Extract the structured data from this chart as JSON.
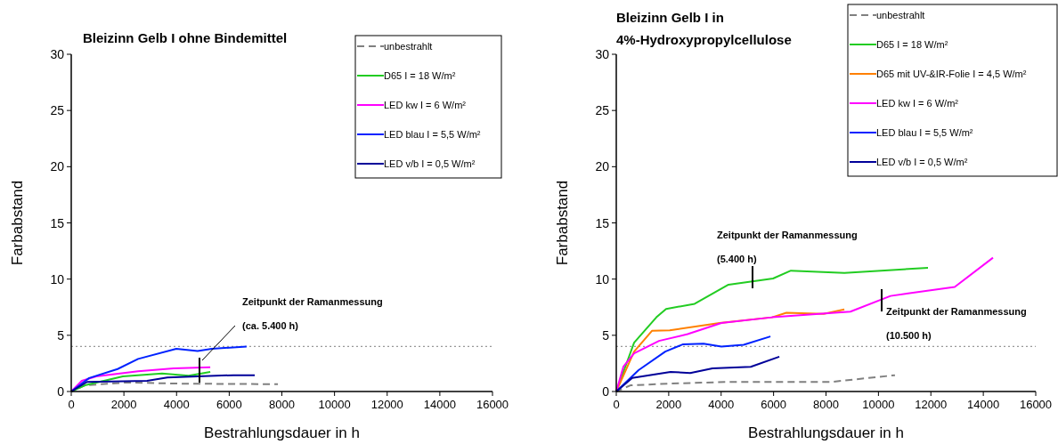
{
  "chart_data": [
    {
      "type": "line",
      "title": "Bleizinn Gelb I ohne Bindemittel",
      "xlabel": "Bestrahlungsdauer in h",
      "ylabel": "Farbabstand",
      "xlim": [
        0,
        16000
      ],
      "ylim": [
        0,
        30
      ],
      "xticks": [
        0,
        2000,
        4000,
        6000,
        8000,
        10000,
        12000,
        14000,
        16000
      ],
      "yticks": [
        0,
        5,
        10,
        15,
        20,
        25,
        30
      ],
      "grid": false,
      "legend": "top right",
      "marker": "none",
      "series": [
        {
          "name": "unbestrahlt",
          "color": "#808080",
          "line_style": "dashed",
          "x": [
            0,
            520,
            2100,
            4200,
            7850
          ],
          "values": [
            0,
            0.55,
            0.8,
            0.7,
            0.65
          ]
        },
        {
          "name": "D65 I = 18 W/m²",
          "color": "#22cc22",
          "x": [
            0,
            520,
            1960,
            3450,
            4460,
            5280
          ],
          "values": [
            0,
            0.55,
            1.35,
            1.6,
            1.4,
            1.75
          ]
        },
        {
          "name": "LED kw I = 6 W/m²",
          "color": "#ff00ff",
          "x": [
            0,
            400,
            950,
            2540,
            3890,
            5280
          ],
          "values": [
            0,
            0.95,
            1.35,
            1.8,
            2.05,
            2.15
          ]
        },
        {
          "name": "LED blau I = 5,5 W/m²",
          "color": "#0022ff",
          "x": [
            0,
            680,
            1760,
            2540,
            3990,
            4800,
            5340,
            6660
          ],
          "values": [
            0,
            1.2,
            2.0,
            2.9,
            3.8,
            3.6,
            3.8,
            4.0
          ]
        },
        {
          "name": "LED v/b I = 0,5 W/m²",
          "color": "#000099",
          "x": [
            0,
            600,
            2880,
            3650,
            4800,
            6160,
            6970
          ],
          "values": [
            0,
            0.85,
            0.95,
            1.25,
            1.35,
            1.45,
            1.45
          ]
        }
      ],
      "ref_lines": [
        {
          "axis": "y",
          "value": 4,
          "color": "#999999",
          "line_style": "dotted"
        }
      ],
      "annotations": [
        "Zeitpunkt der Ramanmessung",
        "(ca. 5.400 h)"
      ]
    },
    {
      "type": "line",
      "title": "Bleizinn Gelb I in 4%-Hydroxypropylcellulose",
      "xlabel": "Bestrahlungsdauer in h",
      "ylabel": "Farbabstand",
      "xlim": [
        0,
        16000
      ],
      "ylim": [
        0,
        30
      ],
      "xticks": [
        0,
        2000,
        4000,
        6000,
        8000,
        10000,
        12000,
        14000,
        16000
      ],
      "yticks": [
        0,
        5,
        10,
        15,
        20,
        25,
        30
      ],
      "grid": false,
      "legend": "top right",
      "marker": "none",
      "series": [
        {
          "name": "unbestrahlt",
          "color": "#808080",
          "line_style": "dashed",
          "x": [
            0,
            540,
            2040,
            4280,
            8190,
            10630
          ],
          "values": [
            0,
            0.55,
            0.7,
            0.85,
            0.85,
            1.45
          ]
        },
        {
          "name": "D65 I = 18 W/m²",
          "color": "#22cc22",
          "x": [
            0,
            680,
            1530,
            1900,
            2990,
            4280,
            5980,
            6660,
            8700,
            11890
          ],
          "values": [
            0,
            4.35,
            6.6,
            7.35,
            7.8,
            9.5,
            10.05,
            10.75,
            10.55,
            11.0
          ]
        },
        {
          "name": "D65 mit UV-&IR-Folie I = 4,5 W/m²",
          "color": "#ff8000",
          "x": [
            0,
            680,
            1360,
            2040,
            3940,
            5940,
            6490,
            7910,
            8700
          ],
          "values": [
            0,
            3.55,
            5.4,
            5.45,
            6.1,
            6.6,
            7.0,
            6.9,
            7.3
          ]
        },
        {
          "name": "LED kw I = 6 W/m²",
          "color": "#ff00ff",
          "x": [
            0,
            270,
            680,
            1630,
            2720,
            4010,
            5940,
            8930,
            10460,
            12910,
            14370
          ],
          "values": [
            0,
            2.2,
            3.4,
            4.5,
            5.1,
            6.1,
            6.6,
            7.1,
            8.5,
            9.3,
            11.9
          ]
        },
        {
          "name": "LED blau I = 5,5 W/m²",
          "color": "#0022ff",
          "x": [
            0,
            850,
            1870,
            2550,
            3330,
            4010,
            4860,
            5880
          ],
          "values": [
            0,
            1.9,
            3.55,
            4.2,
            4.25,
            4.0,
            4.15,
            4.9
          ]
        },
        {
          "name": "LED v/b I = 0,5 W/m²",
          "color": "#000099",
          "x": [
            0,
            610,
            2070,
            2820,
            3670,
            5130,
            6220
          ],
          "values": [
            0,
            1.2,
            1.75,
            1.65,
            2.05,
            2.2,
            3.1
          ]
        }
      ],
      "ref_lines": [
        {
          "axis": "y",
          "value": 4,
          "color": "#999999",
          "line_style": "dotted"
        }
      ],
      "annotations": [
        "Zeitpunkt der Ramanmessung",
        "(5.400 h)",
        "Zeitpunkt der Ramanmessung",
        "(10.500 h)"
      ]
    }
  ]
}
